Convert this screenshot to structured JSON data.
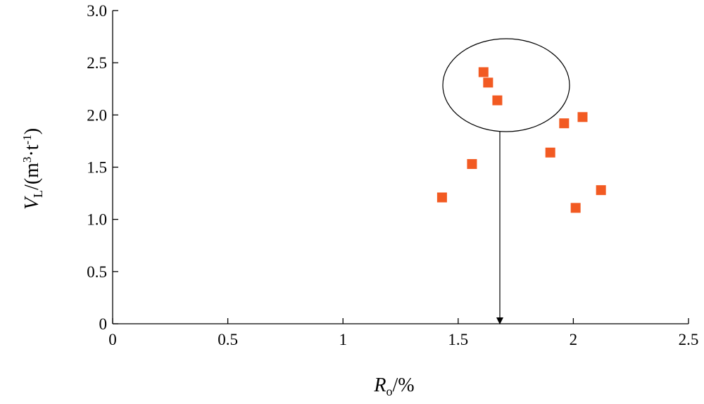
{
  "chart_data": {
    "type": "scatter",
    "x_label": [
      "R",
      "o",
      "/%"
    ],
    "y_label": [
      "V",
      "L",
      "/(m",
      "3",
      "·t",
      "-1",
      ")"
    ],
    "series": [
      {
        "color": "#f25a22",
        "x": [
          1.43,
          1.56,
          1.61,
          1.63,
          1.67,
          1.9,
          1.96,
          2.04,
          2.01,
          2.12
        ],
        "values": [
          1.21,
          1.53,
          2.41,
          2.31,
          2.14,
          1.64,
          1.92,
          1.98,
          1.11,
          1.28
        ]
      }
    ],
    "xlim": [
      0,
      2.5
    ],
    "xticks": [
      0,
      0.5,
      1,
      1.5,
      2,
      2.5
    ],
    "ylim": [
      0,
      3
    ],
    "yticks": [
      0,
      0.5,
      {
        "value": 1,
        "label": "1.0"
      },
      1.5,
      {
        "value": 2,
        "label": "2.0"
      },
      2.5,
      {
        "value": 3,
        "label": "3.0"
      }
    ]
  }
}
